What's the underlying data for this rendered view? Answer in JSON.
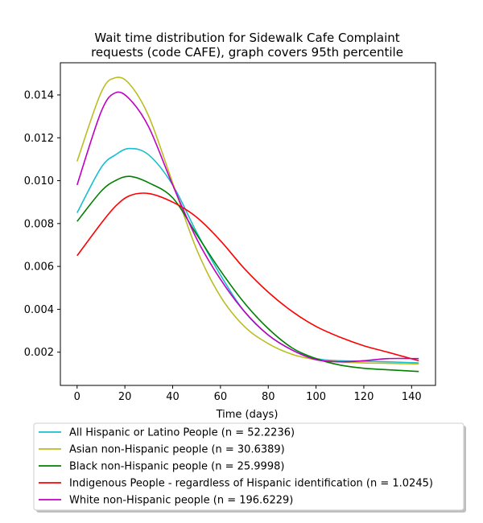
{
  "chart_data": {
    "type": "line",
    "title_line1": "Wait time distribution  for Sidewalk Cafe Complaint",
    "title_line2": "requests (code CAFE), graph covers 95th percentile",
    "xlabel": "Time (days)",
    "ylabel": "",
    "xlim": [
      -7,
      150
    ],
    "ylim": [
      0.00045,
      0.0155
    ],
    "xticks": [
      0,
      20,
      40,
      60,
      80,
      100,
      120,
      140
    ],
    "yticks": [
      0.002,
      0.004,
      0.006,
      0.008,
      0.01,
      0.012,
      0.014
    ],
    "ytick_labels": [
      "0.002",
      "0.004",
      "0.006",
      "0.008",
      "0.010",
      "0.012",
      "0.014"
    ],
    "grid": false,
    "legend_position": "below plot",
    "x": [
      0,
      10,
      16,
      22,
      30,
      40,
      50,
      60,
      70,
      80,
      90,
      100,
      110,
      120,
      130,
      143
    ],
    "series": [
      {
        "name": "All Hispanic or Latino People (n = 52.2236)",
        "color": "#17becf",
        "values": [
          0.0085,
          0.0106,
          0.0112,
          0.0115,
          0.0112,
          0.0098,
          0.0076,
          0.0056,
          0.0039,
          0.0028,
          0.0021,
          0.0017,
          0.0016,
          0.00158,
          0.00155,
          0.0015
        ]
      },
      {
        "name": "Asian non-Hispanic people (n = 30.6389)",
        "color": "#bcbd22",
        "values": [
          0.0109,
          0.0141,
          0.0148,
          0.0145,
          0.013,
          0.0099,
          0.0068,
          0.0046,
          0.0032,
          0.0024,
          0.0019,
          0.00165,
          0.00155,
          0.0015,
          0.00148,
          0.00145
        ]
      },
      {
        "name": "Black non-Hispanic people (n = 25.9998)",
        "color": "#008000",
        "values": [
          0.0081,
          0.0095,
          0.01,
          0.0102,
          0.0099,
          0.0092,
          0.0075,
          0.0058,
          0.0043,
          0.0031,
          0.0022,
          0.0017,
          0.0014,
          0.00125,
          0.00118,
          0.0011
        ]
      },
      {
        "name": "Indigenous People - regardless of Hispanic identification (n = 1.0245)",
        "color": "#ff0000",
        "values": [
          0.0065,
          0.008,
          0.0088,
          0.0093,
          0.0094,
          0.009,
          0.0083,
          0.0072,
          0.0059,
          0.0048,
          0.0039,
          0.0032,
          0.0027,
          0.0023,
          0.002,
          0.0016
        ]
      },
      {
        "name": "White non-Hispanic people (n = 196.6229)",
        "color": "#bf00bf",
        "values": [
          0.0098,
          0.0132,
          0.0141,
          0.0138,
          0.0125,
          0.0098,
          0.0073,
          0.0054,
          0.0039,
          0.0028,
          0.0021,
          0.00165,
          0.00155,
          0.0016,
          0.0017,
          0.0017
        ]
      }
    ]
  }
}
